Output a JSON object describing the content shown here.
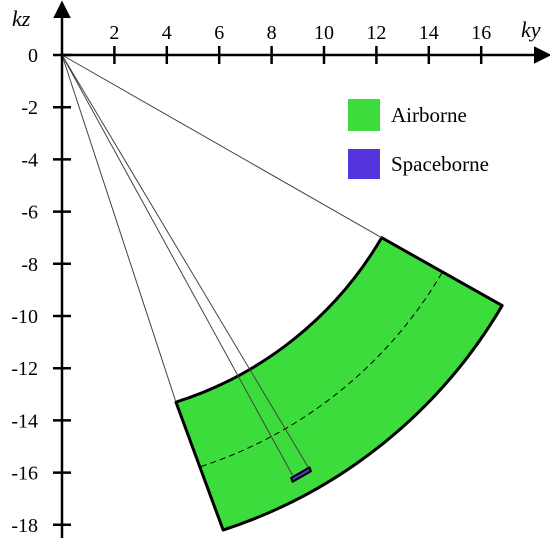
{
  "chart_data": {
    "type": "diagram",
    "xlabel": "ky",
    "ylabel": "kz",
    "x_ticks": [
      2,
      4,
      6,
      8,
      10,
      12,
      14,
      16
    ],
    "y_ticks": [
      0,
      -2,
      -4,
      -6,
      -8,
      -10,
      -12,
      -14,
      -16,
      -18
    ],
    "xlim": [
      0,
      18.5
    ],
    "ylim": [
      -18.3,
      1.6
    ],
    "airborne_sector": {
      "corners": [
        [
          12.2,
          -7.0
        ],
        [
          16.8,
          -9.6
        ],
        [
          6.15,
          -18.2
        ],
        [
          4.35,
          -13.3
        ]
      ],
      "center_arc_ends": [
        [
          14.5,
          -8.35
        ],
        [
          5.2,
          -15.8
        ]
      ],
      "edge_color": "#000000",
      "fill_color": "#3ddc3d"
    },
    "guide_lines": [
      {
        "from": [
          0,
          0
        ],
        "to": [
          12.2,
          -7.0
        ]
      },
      {
        "from": [
          0,
          0
        ],
        "to": [
          4.35,
          -13.3
        ]
      },
      {
        "from": [
          0,
          0
        ],
        "to": [
          8.8,
          -16.1
        ]
      },
      {
        "from": [
          0,
          0
        ],
        "to": [
          9.4,
          -15.8
        ]
      }
    ],
    "spaceborne_patch": {
      "corners": [
        [
          8.75,
          -16.2
        ],
        [
          9.45,
          -15.8
        ],
        [
          9.5,
          -15.95
        ],
        [
          8.8,
          -16.35
        ]
      ],
      "fill_color": "#5533dd"
    },
    "legend": [
      {
        "label": "Airborne",
        "color": "#3ddc3d"
      },
      {
        "label": "Spaceborne",
        "color": "#5533dd"
      }
    ],
    "legend_position": "top-right"
  }
}
